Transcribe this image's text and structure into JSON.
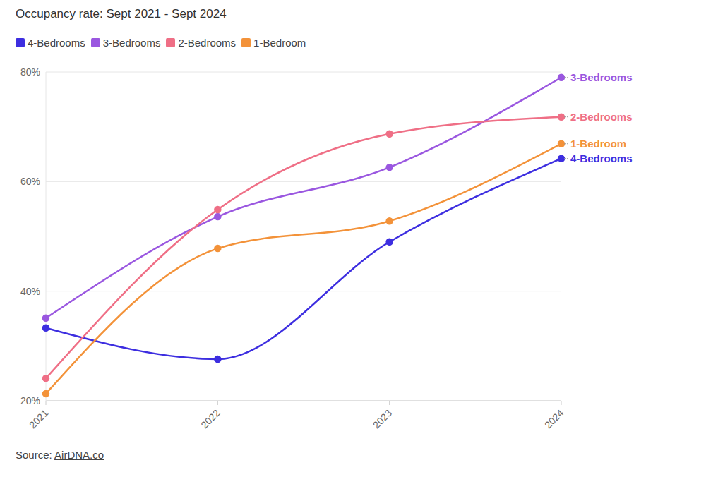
{
  "chart_data": {
    "type": "line",
    "title": "Occupancy rate: Sept 2021 - Sept 2024",
    "source": "Source: AirDNA.co",
    "categories": [
      "2021",
      "2022",
      "2023",
      "2024"
    ],
    "series": [
      {
        "name": "4-Bedrooms",
        "color": "#3d2ee0",
        "marker": "circle",
        "values": [
          33.3,
          27.6,
          49.0,
          64.2
        ]
      },
      {
        "name": "3-Bedrooms",
        "color": "#9a57e0",
        "marker": "circle",
        "values": [
          35.1,
          53.6,
          62.6,
          79.0
        ]
      },
      {
        "name": "2-Bedrooms",
        "color": "#ef6f86",
        "marker": "circle",
        "values": [
          24.1,
          54.9,
          68.7,
          71.8
        ]
      },
      {
        "name": "1-Bedroom",
        "color": "#f39239",
        "marker": "circle",
        "values": [
          21.3,
          47.8,
          52.8,
          66.9
        ]
      }
    ],
    "ylim": [
      20,
      80
    ],
    "yticks": [
      {
        "value": 20,
        "label": "20%"
      },
      {
        "value": 40,
        "label": "40%"
      },
      {
        "value": 60,
        "label": "60%"
      },
      {
        "value": 80,
        "label": "80%"
      }
    ],
    "grid": true,
    "legend": "top-left"
  }
}
